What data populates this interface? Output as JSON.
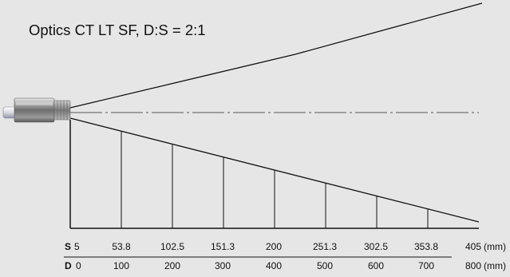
{
  "title": "Optics CT LT SF, D:S  = 2:1",
  "unit": "(mm)",
  "rows": {
    "S": {
      "label": "S",
      "values": [
        "5",
        "53.8",
        "102.5",
        "151.3",
        "200",
        "251.3",
        "302.5",
        "353.8",
        "405"
      ]
    },
    "D": {
      "label": "D",
      "values": [
        "0",
        "100",
        "200",
        "300",
        "400",
        "500",
        "600",
        "700",
        "800"
      ]
    }
  },
  "colors": {
    "background": "#e6e6e6",
    "line": "#111111",
    "centerline": "#555555",
    "sensor_body": "#8c8c8c"
  },
  "icons": {
    "sensor": "ir-sensor-icon"
  }
}
